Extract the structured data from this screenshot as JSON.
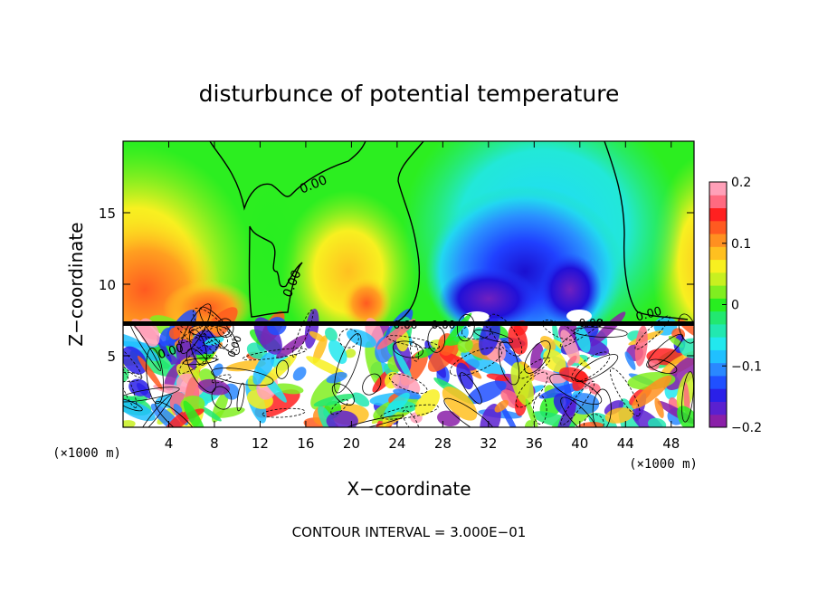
{
  "chart_data": {
    "type": "heatmap",
    "title": "disturbunce of potential temperature",
    "xlabel": "X−coordinate",
    "ylabel": "Z−coordinate",
    "x_unit_left": "(×1000 m)",
    "x_unit_right": "(×1000 m)",
    "xlim": [
      0,
      50
    ],
    "ylim": [
      0,
      20
    ],
    "x_ticks": [
      4,
      8,
      12,
      16,
      20,
      24,
      28,
      32,
      36,
      40,
      44,
      48
    ],
    "y_ticks": [
      5,
      10,
      15
    ],
    "colorbar": {
      "min": -0.2,
      "max": 0.2,
      "ticks": [
        0.2,
        0.1,
        0,
        -0.1,
        -0.2
      ],
      "tick_labels": [
        "0.2",
        "0.1",
        "0",
        "−0.1",
        "−0.2"
      ],
      "colors": [
        "#8a1fa8",
        "#5a20d0",
        "#2a20e8",
        "#2050ff",
        "#2a88ff",
        "#20c0ff",
        "#22e8ee",
        "#22e8b0",
        "#22e870",
        "#28ee20",
        "#80ee20",
        "#c8f020",
        "#f8f020",
        "#ffc020",
        "#ff9020",
        "#ff5a20",
        "#ff2020",
        "#ff6a80",
        "#ffa0b8"
      ]
    },
    "contour_labels": [
      "0.00",
      "0.00",
      "0.00",
      "0.00",
      "0.00",
      "0.00",
      "0.00",
      "0.00"
    ],
    "footer": "CONTOUR INTERVAL = 3.000E−01"
  }
}
